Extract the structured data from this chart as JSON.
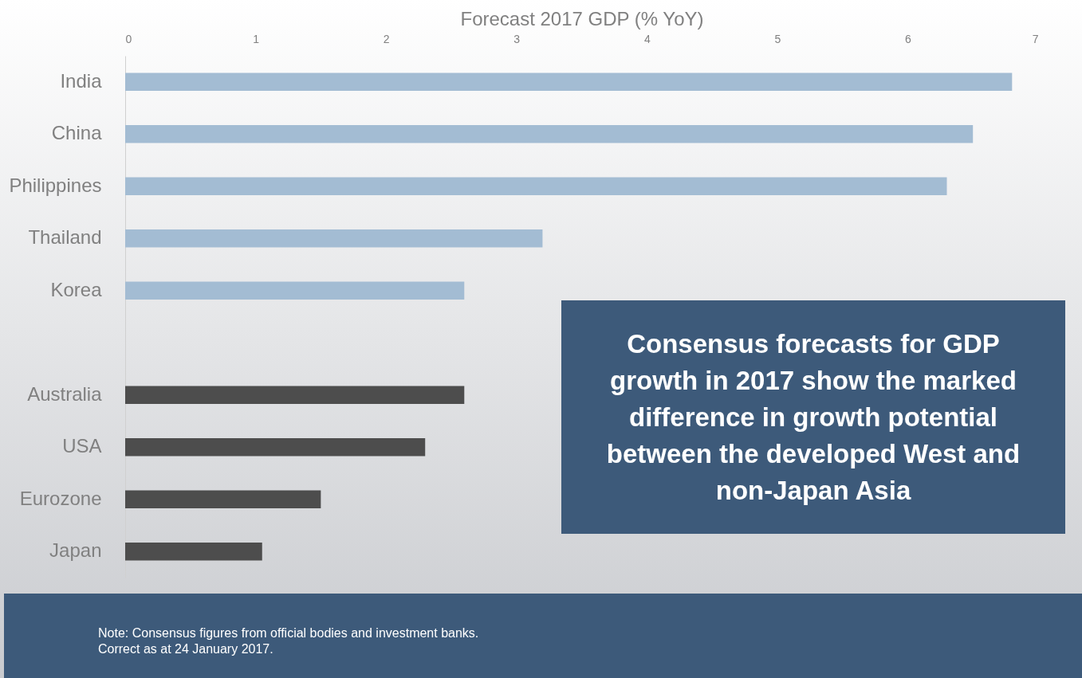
{
  "chart_data": {
    "type": "bar",
    "orientation": "horizontal",
    "xlabel": "Forecast 2017 GDP (% YoY)",
    "categories": [
      "India",
      "China",
      "Philippines",
      "Thailand",
      "Korea",
      null,
      "Australia",
      "USA",
      "Eurozone",
      "Japan"
    ],
    "values": [
      6.8,
      6.5,
      6.3,
      3.2,
      2.6,
      null,
      2.6,
      2.3,
      1.5,
      1.05
    ],
    "colors": [
      "#a3bcd3",
      "#a3bcd3",
      "#a3bcd3",
      "#a3bcd3",
      "#a3bcd3",
      null,
      "#4d4d4d",
      "#4d4d4d",
      "#4d4d4d",
      "#4d4d4d"
    ],
    "xlim": [
      0,
      7
    ],
    "xticks": [
      0,
      1,
      2,
      3,
      4,
      5,
      6,
      7
    ],
    "grid": false,
    "annotations": [
      "Consensus forecasts for GDP growth in 2017 show the marked difference in growth potential between the developed West and non-Japan Asia",
      "Note: Consensus figures from official bodies and investment banks.",
      "Correct as at 24 January 2017."
    ]
  }
}
